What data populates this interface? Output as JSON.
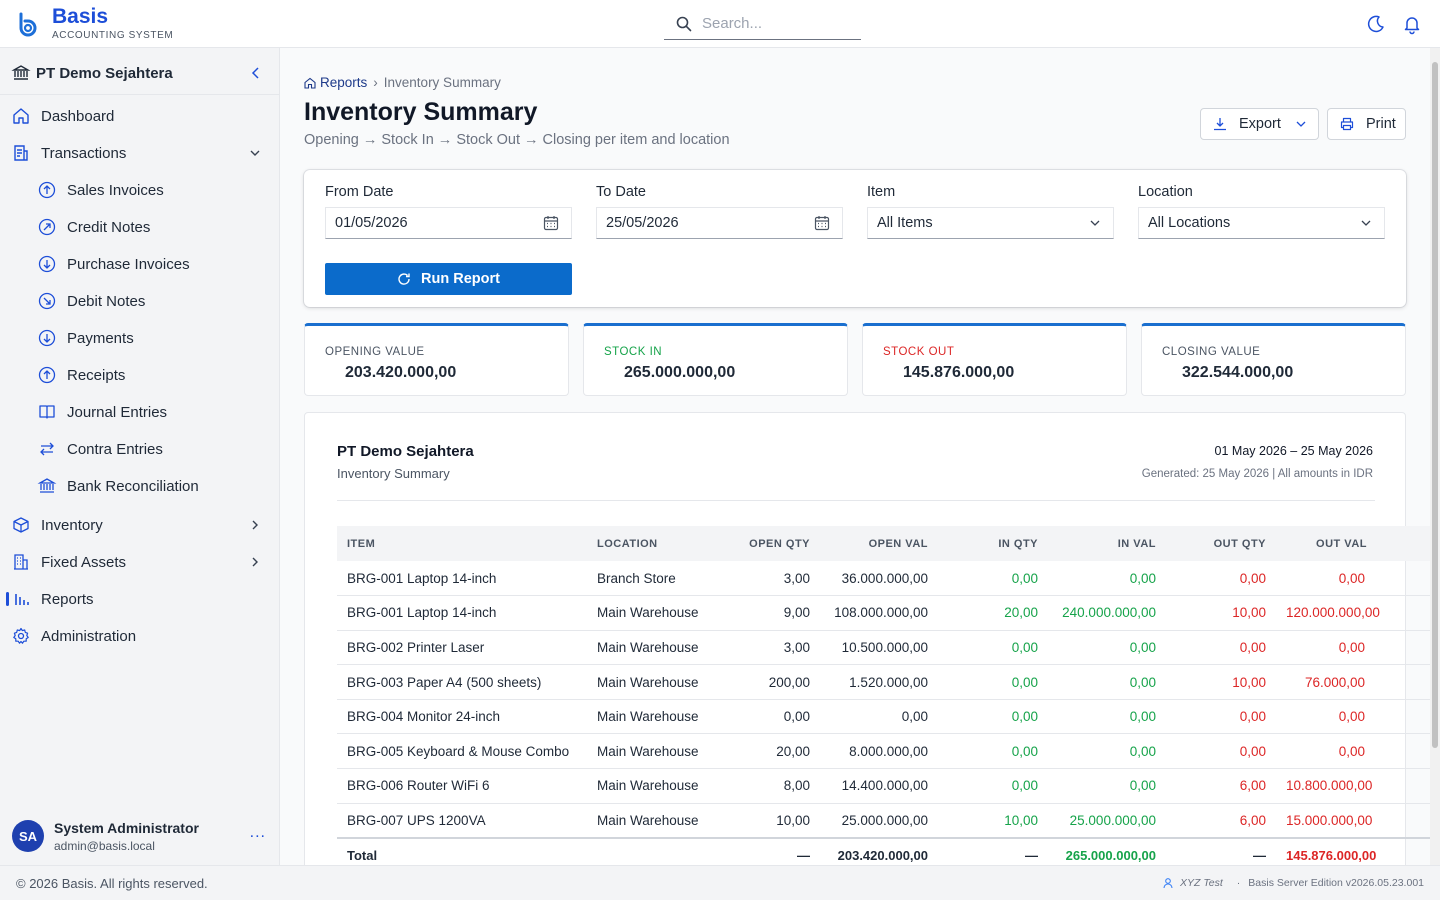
{
  "app": {
    "name": "Basis",
    "subtitle": "ACCOUNTING SYSTEM",
    "search_placeholder": "Search..."
  },
  "sidebar": {
    "org": "PT Demo Sejahtera",
    "items": [
      {
        "label": "Dashboard",
        "icon": "home-icon"
      },
      {
        "label": "Transactions",
        "icon": "receipt-icon"
      },
      {
        "label": "Sales Invoices",
        "icon": "arrow-up-circle-icon"
      },
      {
        "label": "Credit Notes",
        "icon": "arrow-up-right-circle-icon"
      },
      {
        "label": "Purchase Invoices",
        "icon": "arrow-down-circle-icon"
      },
      {
        "label": "Debit Notes",
        "icon": "arrow-down-right-circle-icon"
      },
      {
        "label": "Payments",
        "icon": "arrow-down-circle-icon"
      },
      {
        "label": "Receipts",
        "icon": "arrow-up-circle-icon"
      },
      {
        "label": "Journal Entries",
        "icon": "book-icon"
      },
      {
        "label": "Contra Entries",
        "icon": "swap-icon"
      },
      {
        "label": "Bank Reconciliation",
        "icon": "bank-icon"
      },
      {
        "label": "Inventory",
        "icon": "box-icon"
      },
      {
        "label": "Fixed Assets",
        "icon": "building-icon"
      },
      {
        "label": "Reports",
        "icon": "bar-chart-icon"
      },
      {
        "label": "Administration",
        "icon": "gear-icon"
      }
    ],
    "user": {
      "initials": "SA",
      "name": "System Administrator",
      "email": "admin@basis.local",
      "more": "..."
    }
  },
  "footer": {
    "copyright": "© 2026 Basis. All rights reserved.",
    "user": "XYZ Test",
    "sep": "·",
    "version": "Basis Server Edition v2026.05.23.001"
  },
  "page": {
    "breadcrumb_root": "Reports",
    "breadcrumb_sep": "›",
    "breadcrumb_current": "Inventory Summary",
    "title": "Inventory Summary",
    "subtitle": "Opening → Stock In → Stock Out → Closing per item and location",
    "export_label": "Export",
    "print_label": "Print"
  },
  "filters": {
    "from_label": "From Date",
    "from_value": "01/05/2026",
    "to_label": "To Date",
    "to_value": "25/05/2026",
    "item_label": "Item",
    "item_value": "All Items",
    "location_label": "Location",
    "location_value": "All Locations",
    "run_label": "Run Report"
  },
  "cards": [
    {
      "label": "OPENING VALUE",
      "value": "203.420.000,00",
      "color": "#4b5563"
    },
    {
      "label": "STOCK IN",
      "value": "265.000.000,00",
      "color": "#16a34a"
    },
    {
      "label": "STOCK OUT",
      "value": "145.876.000,00",
      "color": "#dc2626"
    },
    {
      "label": "CLOSING VALUE",
      "value": "322.544.000,00",
      "color": "#4b5563"
    }
  ],
  "report": {
    "company": "PT Demo Sejahtera",
    "name": "Inventory Summary",
    "period": "01 May 2026 – 25 May 2026",
    "generated": "Generated: 25 May 2026 | All amounts in IDR",
    "columns": [
      "ITEM",
      "LOCATION",
      "OPEN QTY",
      "OPEN VAL",
      "IN QTY",
      "IN VAL",
      "OUT QTY",
      "OUT VAL"
    ],
    "rows": [
      {
        "item": "BRG-001  Laptop 14-inch",
        "location": "Branch Store",
        "open_qty": "3,00",
        "open_val": "36.000.000,00",
        "in_qty": "0,00",
        "in_val": "0,00",
        "out_qty": "0,00",
        "out_val": "0,00"
      },
      {
        "item": "BRG-001  Laptop 14-inch",
        "location": "Main Warehouse",
        "open_qty": "9,00",
        "open_val": "108.000.000,00",
        "in_qty": "20,00",
        "in_val": "240.000.000,00",
        "out_qty": "10,00",
        "out_val": "120.000.000,00"
      },
      {
        "item": "BRG-002  Printer Laser",
        "location": "Main Warehouse",
        "open_qty": "3,00",
        "open_val": "10.500.000,00",
        "in_qty": "0,00",
        "in_val": "0,00",
        "out_qty": "0,00",
        "out_val": "0,00"
      },
      {
        "item": "BRG-003  Paper A4 (500 sheets)",
        "location": "Main Warehouse",
        "open_qty": "200,00",
        "open_val": "1.520.000,00",
        "in_qty": "0,00",
        "in_val": "0,00",
        "out_qty": "10,00",
        "out_val": "76.000,00"
      },
      {
        "item": "BRG-004  Monitor 24-inch",
        "location": "Main Warehouse",
        "open_qty": "0,00",
        "open_val": "0,00",
        "in_qty": "0,00",
        "in_val": "0,00",
        "out_qty": "0,00",
        "out_val": "0,00"
      },
      {
        "item": "BRG-005  Keyboard & Mouse Combo",
        "location": "Main Warehouse",
        "open_qty": "20,00",
        "open_val": "8.000.000,00",
        "in_qty": "0,00",
        "in_val": "0,00",
        "out_qty": "0,00",
        "out_val": "0,00"
      },
      {
        "item": "BRG-006  Router WiFi 6",
        "location": "Main Warehouse",
        "open_qty": "8,00",
        "open_val": "14.400.000,00",
        "in_qty": "0,00",
        "in_val": "0,00",
        "out_qty": "6,00",
        "out_val": "10.800.000,00"
      },
      {
        "item": "BRG-007  UPS 1200VA",
        "location": "Main Warehouse",
        "open_qty": "10,00",
        "open_val": "25.000.000,00",
        "in_qty": "10,00",
        "in_val": "25.000.000,00",
        "out_qty": "6,00",
        "out_val": "15.000.000,00"
      }
    ],
    "total": {
      "label": "Total",
      "open_qty": "—",
      "open_val": "203.420.000,00",
      "in_qty": "—",
      "in_val": "265.000.000,00",
      "out_qty": "—",
      "out_val": "145.876.000,00"
    }
  }
}
